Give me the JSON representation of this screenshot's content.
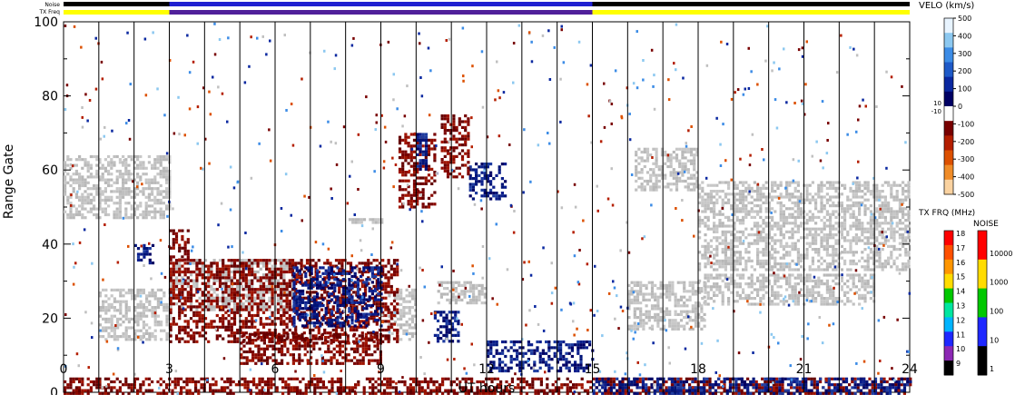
{
  "chart_data": {
    "type": "heatmap",
    "xlabel": "UT hours",
    "ylabel": "Range Gate",
    "xlim": [
      0,
      24
    ],
    "ylim": [
      0,
      100
    ],
    "x_ticks": [
      "0",
      "3",
      "6",
      "9",
      "12",
      "15",
      "18",
      "21",
      "24"
    ],
    "y_ticks": [
      "0",
      "20",
      "40",
      "60",
      "80",
      "100"
    ],
    "scan_boundaries_ut": [
      1,
      2,
      3,
      4,
      5,
      6,
      7,
      8,
      9,
      10,
      11,
      12,
      13,
      14,
      15,
      16,
      17,
      18,
      19,
      20,
      21,
      22,
      23
    ],
    "top_bars": {
      "noise_label": "Noise",
      "txfreq_label": "TX Freq",
      "segments": [
        {
          "start": 0,
          "end": 3,
          "noise": "black",
          "txfreq": "yellow"
        },
        {
          "start": 3,
          "end": 15,
          "noise": "blue",
          "txfreq": "purple"
        },
        {
          "start": 15,
          "end": 24,
          "noise": "black",
          "txfreq": "yellow"
        }
      ]
    },
    "velocity_scale": {
      "title": "VELO (km/s)",
      "ticks": [
        "500",
        "400",
        "300",
        "200",
        "100",
        "0",
        "-100",
        "-200",
        "-300",
        "-400",
        "-500"
      ],
      "side_ticks": [
        "10",
        "-10"
      ],
      "colors": [
        "#e8f4ff",
        "#8cc8f0",
        "#3c8ce6",
        "#1e5ac8",
        "#0a28a0",
        "#000064",
        "#ffffff",
        "#780000",
        "#b41e00",
        "#dc5000",
        "#f08c28",
        "#fad2a0"
      ]
    },
    "txfreq_scale": {
      "title": "TX FRQ (MHz)",
      "ticks": [
        "18",
        "17",
        "16",
        "15",
        "14",
        "13",
        "12",
        "11",
        "10",
        "9"
      ],
      "colors": [
        "#ff0000",
        "#ff5000",
        "#ff9600",
        "#ffdc00",
        "#00c800",
        "#00e6a0",
        "#00b4ff",
        "#1e28ff",
        "#8c28b4",
        "#000000"
      ]
    },
    "noise_scale": {
      "title": "NOISE",
      "ticks": [
        "10000",
        "1000",
        "100",
        "10",
        "1"
      ],
      "colors": [
        "#ff0000",
        "#ffdc00",
        "#00c800",
        "#1e28ff",
        "#000000"
      ]
    },
    "regions": [
      {
        "type": "ground",
        "t0": 0.0,
        "t1": 3.0,
        "g0": 47,
        "g1": 64
      },
      {
        "type": "ground",
        "t0": 1.0,
        "t1": 3.0,
        "g0": 14,
        "g1": 28
      },
      {
        "type": "ground",
        "t0": 3.0,
        "t1": 6.5,
        "g0": 22,
        "g1": 36
      },
      {
        "type": "ground",
        "t0": 9.2,
        "t1": 10.0,
        "g0": 14,
        "g1": 28
      },
      {
        "type": "ground",
        "t0": 10.6,
        "t1": 12.0,
        "g0": 24,
        "g1": 30
      },
      {
        "type": "ground",
        "t0": 16.0,
        "t1": 18.2,
        "g0": 17,
        "g1": 30
      },
      {
        "type": "ground",
        "t0": 16.2,
        "t1": 18.0,
        "g0": 55,
        "g1": 66
      },
      {
        "type": "ground",
        "t0": 18.0,
        "t1": 24.0,
        "g0": 33,
        "g1": 57
      },
      {
        "type": "ground",
        "t0": 18.0,
        "t1": 23.0,
        "g0": 24,
        "g1": 32
      },
      {
        "type": "neg",
        "t0": 3.0,
        "t1": 9.5,
        "g0": 14,
        "g1": 36
      },
      {
        "type": "neg",
        "t0": 5.0,
        "t1": 9.0,
        "g0": 8,
        "g1": 16
      },
      {
        "type": "neg",
        "t0": 0.0,
        "t1": 24.0,
        "g0": 0,
        "g1": 4
      },
      {
        "type": "neg",
        "t0": 3.0,
        "t1": 3.5,
        "g0": 36,
        "g1": 44
      },
      {
        "type": "pos",
        "t0": 6.5,
        "t1": 9.0,
        "g0": 18,
        "g1": 34
      },
      {
        "type": "pos",
        "t0": 10.5,
        "t1": 11.2,
        "g0": 14,
        "g1": 22
      },
      {
        "type": "pos",
        "t0": 12.0,
        "t1": 15.0,
        "g0": 6,
        "g1": 14
      },
      {
        "type": "pos",
        "t0": 11.5,
        "t1": 12.5,
        "g0": 52,
        "g1": 62
      },
      {
        "type": "pos",
        "t0": 15.0,
        "t1": 24.0,
        "g0": 0,
        "g1": 4
      },
      {
        "type": "pos",
        "t0": 2.0,
        "t1": 2.5,
        "g0": 35,
        "g1": 40
      },
      {
        "type": "neg",
        "t0": 9.5,
        "t1": 10.5,
        "g0": 50,
        "g1": 70
      },
      {
        "type": "neg",
        "t0": 10.7,
        "t1": 11.5,
        "g0": 58,
        "g1": 75
      },
      {
        "type": "pos",
        "t0": 10.0,
        "t1": 10.3,
        "g0": 60,
        "g1": 70
      },
      {
        "type": "ground",
        "t0": 8.0,
        "t1": 9.0,
        "g0": 46,
        "g1": 47
      }
    ]
  }
}
